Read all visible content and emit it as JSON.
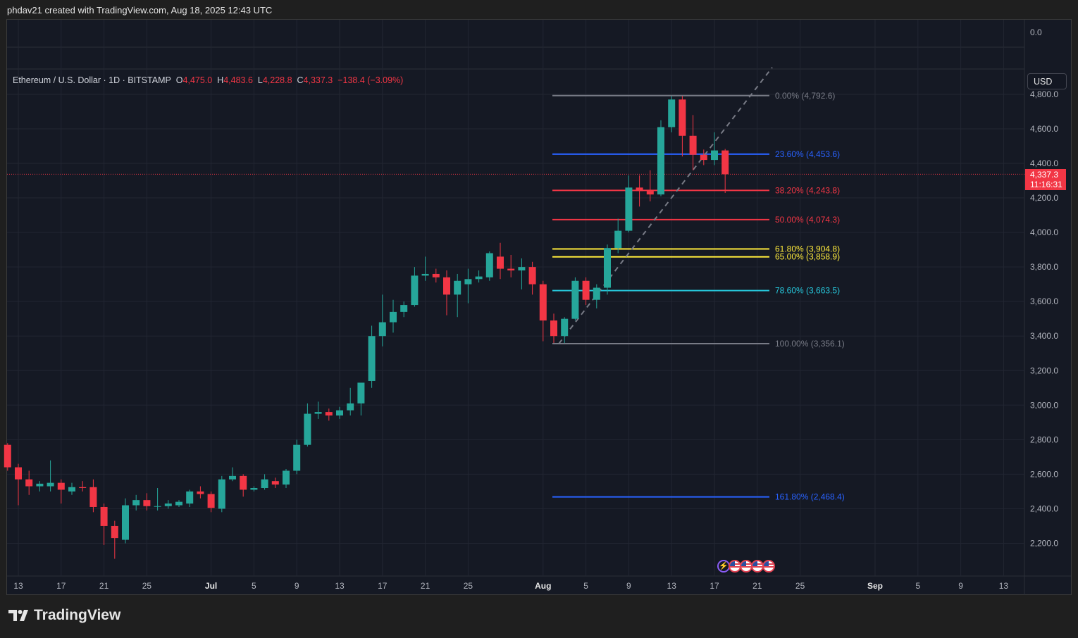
{
  "header": {
    "attribution": "phdav21 created with TradingView.com, Aug 18, 2025 12:43 UTC"
  },
  "legend": {
    "symbol": "Ethereum / U.S. Dollar · 1D · BITSTAMP",
    "open_label": "O",
    "open": "4,475.0",
    "high_label": "H",
    "high": "4,483.6",
    "low_label": "L",
    "low": "4,228.8",
    "close_label": "C",
    "close": "4,337.3",
    "change": "−138.4 (−3.09%)"
  },
  "currency_button": "USD",
  "last_price": {
    "price": "4,337.3",
    "countdown": "11:16:31",
    "value": 4337.3
  },
  "footer": {
    "brand": "TradingView"
  },
  "colors": {
    "up": "#26a69a",
    "down": "#f23645",
    "background": "#151924",
    "grid": "#222632",
    "axis_text": "#b2b5be"
  },
  "chart_data": {
    "type": "candlestick",
    "title": "Ethereum / U.S. Dollar · 1D · BITSTAMP",
    "ylim": [
      2100,
      4900
    ],
    "y_ticks": [
      2200,
      2400,
      2600,
      2800,
      3000,
      3200,
      3400,
      3600,
      3800,
      4000,
      4200,
      4400,
      4600,
      4800
    ],
    "y_tick_labels": [
      "2,200.0",
      "2,400.0",
      "2,600.0",
      "2,800.0",
      "3,000.0",
      "3,200.0",
      "3,400.0",
      "3,600.0",
      "3,800.0",
      "4,000.0",
      "4,200.0",
      "4,400.0",
      "4,600.0",
      "4,800.0"
    ],
    "volume_pane_tick": "0.0",
    "x_axis_start": "2025-06-13",
    "x_axis_end": "2025-09-13",
    "x_ticks": [
      {
        "date": "2025-06-13",
        "label": "13",
        "bold": false
      },
      {
        "date": "2025-06-17",
        "label": "17",
        "bold": false
      },
      {
        "date": "2025-06-21",
        "label": "21",
        "bold": false
      },
      {
        "date": "2025-06-25",
        "label": "25",
        "bold": false
      },
      {
        "date": "2025-07-01",
        "label": "Jul",
        "bold": true
      },
      {
        "date": "2025-07-05",
        "label": "5",
        "bold": false
      },
      {
        "date": "2025-07-09",
        "label": "9",
        "bold": false
      },
      {
        "date": "2025-07-13",
        "label": "13",
        "bold": false
      },
      {
        "date": "2025-07-17",
        "label": "17",
        "bold": false
      },
      {
        "date": "2025-07-21",
        "label": "21",
        "bold": false
      },
      {
        "date": "2025-07-25",
        "label": "25",
        "bold": false
      },
      {
        "date": "2025-08-01",
        "label": "Aug",
        "bold": true
      },
      {
        "date": "2025-08-05",
        "label": "5",
        "bold": false
      },
      {
        "date": "2025-08-09",
        "label": "9",
        "bold": false
      },
      {
        "date": "2025-08-13",
        "label": "13",
        "bold": false
      },
      {
        "date": "2025-08-17",
        "label": "17",
        "bold": false
      },
      {
        "date": "2025-08-21",
        "label": "21",
        "bold": false
      },
      {
        "date": "2025-08-25",
        "label": "25",
        "bold": false
      },
      {
        "date": "2025-09-01",
        "label": "Sep",
        "bold": true
      },
      {
        "date": "2025-09-05",
        "label": "5",
        "bold": false
      },
      {
        "date": "2025-09-09",
        "label": "9",
        "bold": false
      },
      {
        "date": "2025-09-13",
        "label": "13",
        "bold": false
      }
    ],
    "candles": [
      {
        "date": "2025-06-12",
        "o": 2770,
        "h": 2780,
        "l": 2620,
        "c": 2640
      },
      {
        "date": "2025-06-13",
        "o": 2640,
        "h": 2660,
        "l": 2420,
        "c": 2570
      },
      {
        "date": "2025-06-14",
        "o": 2570,
        "h": 2620,
        "l": 2480,
        "c": 2530
      },
      {
        "date": "2025-06-15",
        "o": 2530,
        "h": 2560,
        "l": 2500,
        "c": 2545
      },
      {
        "date": "2025-06-16",
        "o": 2530,
        "h": 2680,
        "l": 2500,
        "c": 2550
      },
      {
        "date": "2025-06-17",
        "o": 2550,
        "h": 2570,
        "l": 2430,
        "c": 2510
      },
      {
        "date": "2025-06-18",
        "o": 2500,
        "h": 2550,
        "l": 2480,
        "c": 2525
      },
      {
        "date": "2025-06-19",
        "o": 2525,
        "h": 2560,
        "l": 2500,
        "c": 2520
      },
      {
        "date": "2025-06-20",
        "o": 2525,
        "h": 2570,
        "l": 2380,
        "c": 2410
      },
      {
        "date": "2025-06-21",
        "o": 2410,
        "h": 2430,
        "l": 2190,
        "c": 2300
      },
      {
        "date": "2025-06-22",
        "o": 2300,
        "h": 2330,
        "l": 2110,
        "c": 2230
      },
      {
        "date": "2025-06-23",
        "o": 2220,
        "h": 2460,
        "l": 2200,
        "c": 2420
      },
      {
        "date": "2025-06-24",
        "o": 2420,
        "h": 2480,
        "l": 2390,
        "c": 2450
      },
      {
        "date": "2025-06-25",
        "o": 2450,
        "h": 2490,
        "l": 2390,
        "c": 2415
      },
      {
        "date": "2025-06-26",
        "o": 2415,
        "h": 2520,
        "l": 2390,
        "c": 2415
      },
      {
        "date": "2025-06-27",
        "o": 2415,
        "h": 2450,
        "l": 2400,
        "c": 2430
      },
      {
        "date": "2025-06-28",
        "o": 2420,
        "h": 2450,
        "l": 2410,
        "c": 2440
      },
      {
        "date": "2025-06-29",
        "o": 2430,
        "h": 2510,
        "l": 2410,
        "c": 2500
      },
      {
        "date": "2025-06-30",
        "o": 2500,
        "h": 2530,
        "l": 2460,
        "c": 2485
      },
      {
        "date": "2025-07-01",
        "o": 2485,
        "h": 2500,
        "l": 2380,
        "c": 2405
      },
      {
        "date": "2025-07-02",
        "o": 2400,
        "h": 2590,
        "l": 2380,
        "c": 2570
      },
      {
        "date": "2025-07-03",
        "o": 2570,
        "h": 2640,
        "l": 2560,
        "c": 2590
      },
      {
        "date": "2025-07-04",
        "o": 2590,
        "h": 2600,
        "l": 2470,
        "c": 2510
      },
      {
        "date": "2025-07-05",
        "o": 2510,
        "h": 2530,
        "l": 2500,
        "c": 2520
      },
      {
        "date": "2025-07-06",
        "o": 2520,
        "h": 2600,
        "l": 2510,
        "c": 2570
      },
      {
        "date": "2025-07-07",
        "o": 2560,
        "h": 2580,
        "l": 2520,
        "c": 2540
      },
      {
        "date": "2025-07-08",
        "o": 2540,
        "h": 2630,
        "l": 2520,
        "c": 2620
      },
      {
        "date": "2025-07-09",
        "o": 2620,
        "h": 2800,
        "l": 2600,
        "c": 2770
      },
      {
        "date": "2025-07-10",
        "o": 2770,
        "h": 3010,
        "l": 2760,
        "c": 2950
      },
      {
        "date": "2025-07-11",
        "o": 2950,
        "h": 3020,
        "l": 2920,
        "c": 2960
      },
      {
        "date": "2025-07-12",
        "o": 2960,
        "h": 2980,
        "l": 2910,
        "c": 2940
      },
      {
        "date": "2025-07-13",
        "o": 2940,
        "h": 2990,
        "l": 2920,
        "c": 2970
      },
      {
        "date": "2025-07-14",
        "o": 2970,
        "h": 3100,
        "l": 2940,
        "c": 3010
      },
      {
        "date": "2025-07-15",
        "o": 3010,
        "h": 3120,
        "l": 2940,
        "c": 3130
      },
      {
        "date": "2025-07-16",
        "o": 3140,
        "h": 3460,
        "l": 3100,
        "c": 3400
      },
      {
        "date": "2025-07-17",
        "o": 3400,
        "h": 3640,
        "l": 3340,
        "c": 3480
      },
      {
        "date": "2025-07-18",
        "o": 3480,
        "h": 3610,
        "l": 3420,
        "c": 3540
      },
      {
        "date": "2025-07-19",
        "o": 3540,
        "h": 3600,
        "l": 3510,
        "c": 3580
      },
      {
        "date": "2025-07-20",
        "o": 3580,
        "h": 3800,
        "l": 3570,
        "c": 3750
      },
      {
        "date": "2025-07-21",
        "o": 3750,
        "h": 3860,
        "l": 3720,
        "c": 3760
      },
      {
        "date": "2025-07-22",
        "o": 3760,
        "h": 3790,
        "l": 3710,
        "c": 3740
      },
      {
        "date": "2025-07-23",
        "o": 3740,
        "h": 3780,
        "l": 3520,
        "c": 3640
      },
      {
        "date": "2025-07-24",
        "o": 3640,
        "h": 3760,
        "l": 3510,
        "c": 3720
      },
      {
        "date": "2025-07-25",
        "o": 3700,
        "h": 3790,
        "l": 3590,
        "c": 3730
      },
      {
        "date": "2025-07-26",
        "o": 3730,
        "h": 3780,
        "l": 3710,
        "c": 3745
      },
      {
        "date": "2025-07-27",
        "o": 3740,
        "h": 3890,
        "l": 3720,
        "c": 3880
      },
      {
        "date": "2025-07-28",
        "o": 3860,
        "h": 3940,
        "l": 3730,
        "c": 3790
      },
      {
        "date": "2025-07-29",
        "o": 3790,
        "h": 3870,
        "l": 3740,
        "c": 3780
      },
      {
        "date": "2025-07-30",
        "o": 3780,
        "h": 3850,
        "l": 3670,
        "c": 3800
      },
      {
        "date": "2025-07-31",
        "o": 3800,
        "h": 3830,
        "l": 3640,
        "c": 3700
      },
      {
        "date": "2025-08-01",
        "o": 3700,
        "h": 3720,
        "l": 3370,
        "c": 3490
      },
      {
        "date": "2025-08-02",
        "o": 3490,
        "h": 3530,
        "l": 3360,
        "c": 3400
      },
      {
        "date": "2025-08-03",
        "o": 3400,
        "h": 3510,
        "l": 3360,
        "c": 3500
      },
      {
        "date": "2025-08-04",
        "o": 3500,
        "h": 3740,
        "l": 3490,
        "c": 3720
      },
      {
        "date": "2025-08-05",
        "o": 3720,
        "h": 3740,
        "l": 3580,
        "c": 3610
      },
      {
        "date": "2025-08-06",
        "o": 3610,
        "h": 3700,
        "l": 3560,
        "c": 3680
      },
      {
        "date": "2025-08-07",
        "o": 3680,
        "h": 3930,
        "l": 3640,
        "c": 3910
      },
      {
        "date": "2025-08-08",
        "o": 3910,
        "h": 4080,
        "l": 3880,
        "c": 4010
      },
      {
        "date": "2025-08-09",
        "o": 4010,
        "h": 4330,
        "l": 4000,
        "c": 4260
      },
      {
        "date": "2025-08-10",
        "o": 4260,
        "h": 4330,
        "l": 4150,
        "c": 4240
      },
      {
        "date": "2025-08-11",
        "o": 4240,
        "h": 4360,
        "l": 4180,
        "c": 4220
      },
      {
        "date": "2025-08-12",
        "o": 4220,
        "h": 4650,
        "l": 4210,
        "c": 4610
      },
      {
        "date": "2025-08-13",
        "o": 4610,
        "h": 4790,
        "l": 4580,
        "c": 4770
      },
      {
        "date": "2025-08-14",
        "o": 4770,
        "h": 4790,
        "l": 4440,
        "c": 4560
      },
      {
        "date": "2025-08-15",
        "o": 4560,
        "h": 4680,
        "l": 4360,
        "c": 4450
      },
      {
        "date": "2025-08-16",
        "o": 4450,
        "h": 4480,
        "l": 4390,
        "c": 4420
      },
      {
        "date": "2025-08-17",
        "o": 4420,
        "h": 4580,
        "l": 4390,
        "c": 4475
      },
      {
        "date": "2025-08-18",
        "o": 4475,
        "h": 4483.6,
        "l": 4228.8,
        "c": 4337.3
      }
    ],
    "fibonacci": {
      "start_date": "2025-08-02",
      "end_date": "2025-08-22",
      "trend_from": {
        "date": "2025-08-03",
        "price": 3356.1
      },
      "trend_to": {
        "date": "2025-08-22",
        "price": 4792.6
      },
      "levels": [
        {
          "ratio": 0.0,
          "price": 4792.6,
          "label": "0.00% (4,792.6)",
          "color": "#787b86"
        },
        {
          "ratio": 0.236,
          "price": 4453.6,
          "label": "23.60% (4,453.6)",
          "color": "#2962ff"
        },
        {
          "ratio": 0.382,
          "price": 4243.8,
          "label": "38.20% (4,243.8)",
          "color": "#f23645"
        },
        {
          "ratio": 0.5,
          "price": 4074.3,
          "label": "50.00% (4,074.3)",
          "color": "#f23645"
        },
        {
          "ratio": 0.618,
          "price": 3904.8,
          "label": "61.80% (3,904.8)",
          "color": "#ffeb3b"
        },
        {
          "ratio": 0.65,
          "price": 3858.9,
          "label": "65.00% (3,858.9)",
          "color": "#ffeb3b"
        },
        {
          "ratio": 0.786,
          "price": 3663.5,
          "label": "78.60% (3,663.5)",
          "color": "#26c6da"
        },
        {
          "ratio": 1.0,
          "price": 3356.1,
          "label": "100.00% (3,356.1)",
          "color": "#787b86"
        },
        {
          "ratio": 1.618,
          "price": 2468.4,
          "label": "161.80% (2,468.4)",
          "color": "#2962ff"
        }
      ]
    }
  }
}
